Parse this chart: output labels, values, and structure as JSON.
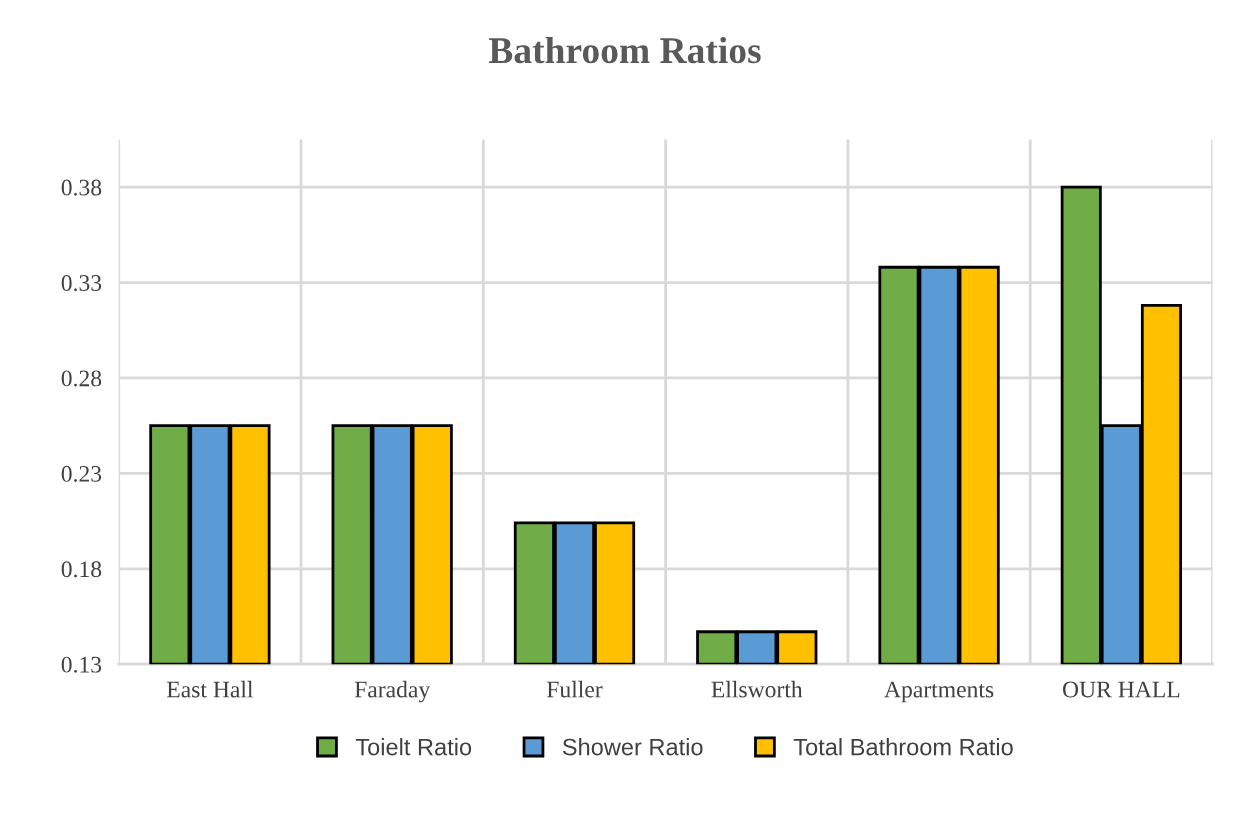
{
  "chart_data": {
    "type": "bar",
    "title": "Bathroom Ratios",
    "categories": [
      "East Hall",
      "Faraday",
      "Fuller",
      "Ellsworth",
      "Apartments",
      "OUR HALL"
    ],
    "series": [
      {
        "name": "Toielt Ratio",
        "color": "#70ad47",
        "values": [
          0.255,
          0.255,
          0.204,
          0.147,
          0.338,
          0.38
        ]
      },
      {
        "name": "Shower Ratio",
        "color": "#5b9bd5",
        "values": [
          0.255,
          0.255,
          0.204,
          0.147,
          0.338,
          0.255
        ]
      },
      {
        "name": "Total Bathroom Ratio",
        "color": "#ffc000",
        "values": [
          0.255,
          0.255,
          0.204,
          0.147,
          0.338,
          0.318
        ]
      }
    ],
    "ylim": [
      0.13,
      0.405
    ],
    "yticks": [
      0.13,
      0.18,
      0.23,
      0.28,
      0.33,
      0.38
    ],
    "grid": true,
    "legend": "bottom"
  }
}
